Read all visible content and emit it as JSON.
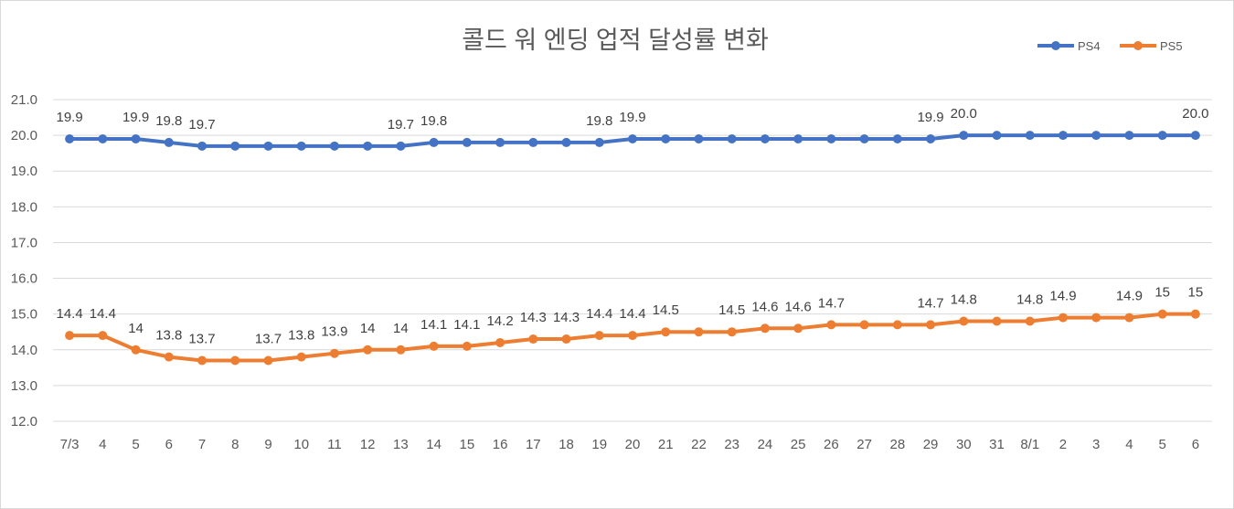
{
  "chart_data": {
    "type": "line",
    "title": "콜드 워 엔딩 업적 달성률 변화",
    "xlabel": "",
    "ylabel": "",
    "ylim": [
      12.0,
      21.0
    ],
    "yticks": [
      "12.0",
      "13.0",
      "14.0",
      "15.0",
      "16.0",
      "17.0",
      "18.0",
      "19.0",
      "20.0",
      "21.0"
    ],
    "grid": true,
    "legend_position": "top-right",
    "categories": [
      "7/3",
      "4",
      "5",
      "6",
      "7",
      "8",
      "9",
      "10",
      "11",
      "12",
      "13",
      "14",
      "15",
      "16",
      "17",
      "18",
      "19",
      "20",
      "21",
      "22",
      "23",
      "24",
      "25",
      "26",
      "27",
      "28",
      "29",
      "30",
      "31",
      "8/1",
      "2",
      "3",
      "4",
      "5",
      "6"
    ],
    "series": [
      {
        "name": "PS4",
        "color": "#4472C4",
        "values": [
          19.9,
          19.9,
          19.9,
          19.8,
          19.7,
          19.7,
          19.7,
          19.7,
          19.7,
          19.7,
          19.7,
          19.8,
          19.8,
          19.8,
          19.8,
          19.8,
          19.8,
          19.9,
          19.9,
          19.9,
          19.9,
          19.9,
          19.9,
          19.9,
          19.9,
          19.9,
          19.9,
          20.0,
          20.0,
          20.0,
          20.0,
          20.0,
          20.0,
          20.0,
          20.0
        ],
        "labels": [
          "19.9",
          "",
          "19.9",
          "19.8",
          "19.7",
          "",
          "",
          "",
          "",
          "",
          "19.7",
          "19.8",
          "",
          "",
          "",
          "",
          "19.8",
          "19.9",
          "",
          "",
          "",
          "",
          "",
          "",
          "",
          "",
          "19.9",
          "20.0",
          "",
          "",
          "",
          "",
          "",
          "",
          "20.0"
        ]
      },
      {
        "name": "PS5",
        "color": "#ED7D31",
        "values": [
          14.4,
          14.4,
          14.0,
          13.8,
          13.7,
          13.7,
          13.7,
          13.8,
          13.9,
          14.0,
          14.0,
          14.1,
          14.1,
          14.2,
          14.3,
          14.3,
          14.4,
          14.4,
          14.5,
          14.5,
          14.5,
          14.6,
          14.6,
          14.7,
          14.7,
          14.7,
          14.7,
          14.8,
          14.8,
          14.8,
          14.9,
          14.9,
          14.9,
          15.0,
          15.0
        ],
        "labels": [
          "14.4",
          "14.4",
          "14",
          "13.8",
          "13.7",
          "",
          "13.7",
          "13.8",
          "13.9",
          "14",
          "14",
          "14.1",
          "14.1",
          "14.2",
          "14.3",
          "14.3",
          "14.4",
          "14.4",
          "14.5",
          "",
          "14.5",
          "14.6",
          "14.6",
          "14.7",
          "",
          "",
          "14.7",
          "14.8",
          "",
          "14.8",
          "14.9",
          "",
          "14.9",
          "15",
          "15"
        ]
      }
    ]
  }
}
